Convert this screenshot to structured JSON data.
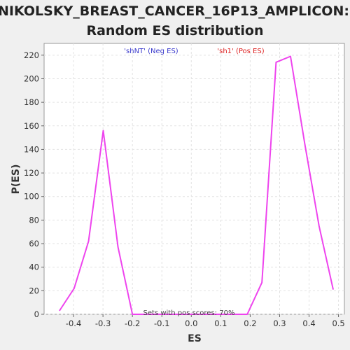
{
  "chart_data": {
    "type": "line",
    "title_lines": [
      "NIKOLSKY_BREAST_CANCER_16P13_AMPLICON:",
      "Random ES distribution"
    ],
    "xlabel": "ES",
    "ylabel": "P(ES)",
    "xlim": [
      -0.5,
      0.52
    ],
    "ylim": [
      0,
      230
    ],
    "xticks": [
      -0.4,
      -0.3,
      -0.2,
      -0.1,
      0.0,
      0.1,
      0.2,
      0.3,
      0.4,
      0.5
    ],
    "xtick_labels": [
      "-0.4",
      "-0.3",
      "-0.2",
      "-0.1",
      "0.0",
      "0.1",
      "0.2",
      "0.3",
      "0.4",
      "0.5"
    ],
    "yticks": [
      0,
      20,
      40,
      60,
      80,
      100,
      120,
      140,
      160,
      180,
      200,
      220
    ],
    "ytick_labels": [
      "0",
      "20",
      "40",
      "60",
      "80",
      "100",
      "120",
      "140",
      "160",
      "180",
      "200",
      "220"
    ],
    "grid": true,
    "series": [
      {
        "color": "#ee44ee",
        "x": [
          -0.448,
          -0.398,
          -0.349,
          -0.299,
          -0.249,
          -0.2,
          -0.15,
          0.19,
          0.24,
          0.288,
          0.337,
          0.386,
          0.434,
          0.482
        ],
        "y": [
          3,
          22,
          62,
          156,
          57,
          0,
          0,
          0,
          27,
          214,
          219,
          144,
          75,
          21
        ]
      }
    ],
    "legend": [
      {
        "label": "'shNT' (Neg ES)",
        "color": "#3a3acc"
      },
      {
        "label": "'sh1' (Pos ES)",
        "color": "#dd2222"
      }
    ],
    "annotation": "Sets with pos scores: 70%"
  }
}
